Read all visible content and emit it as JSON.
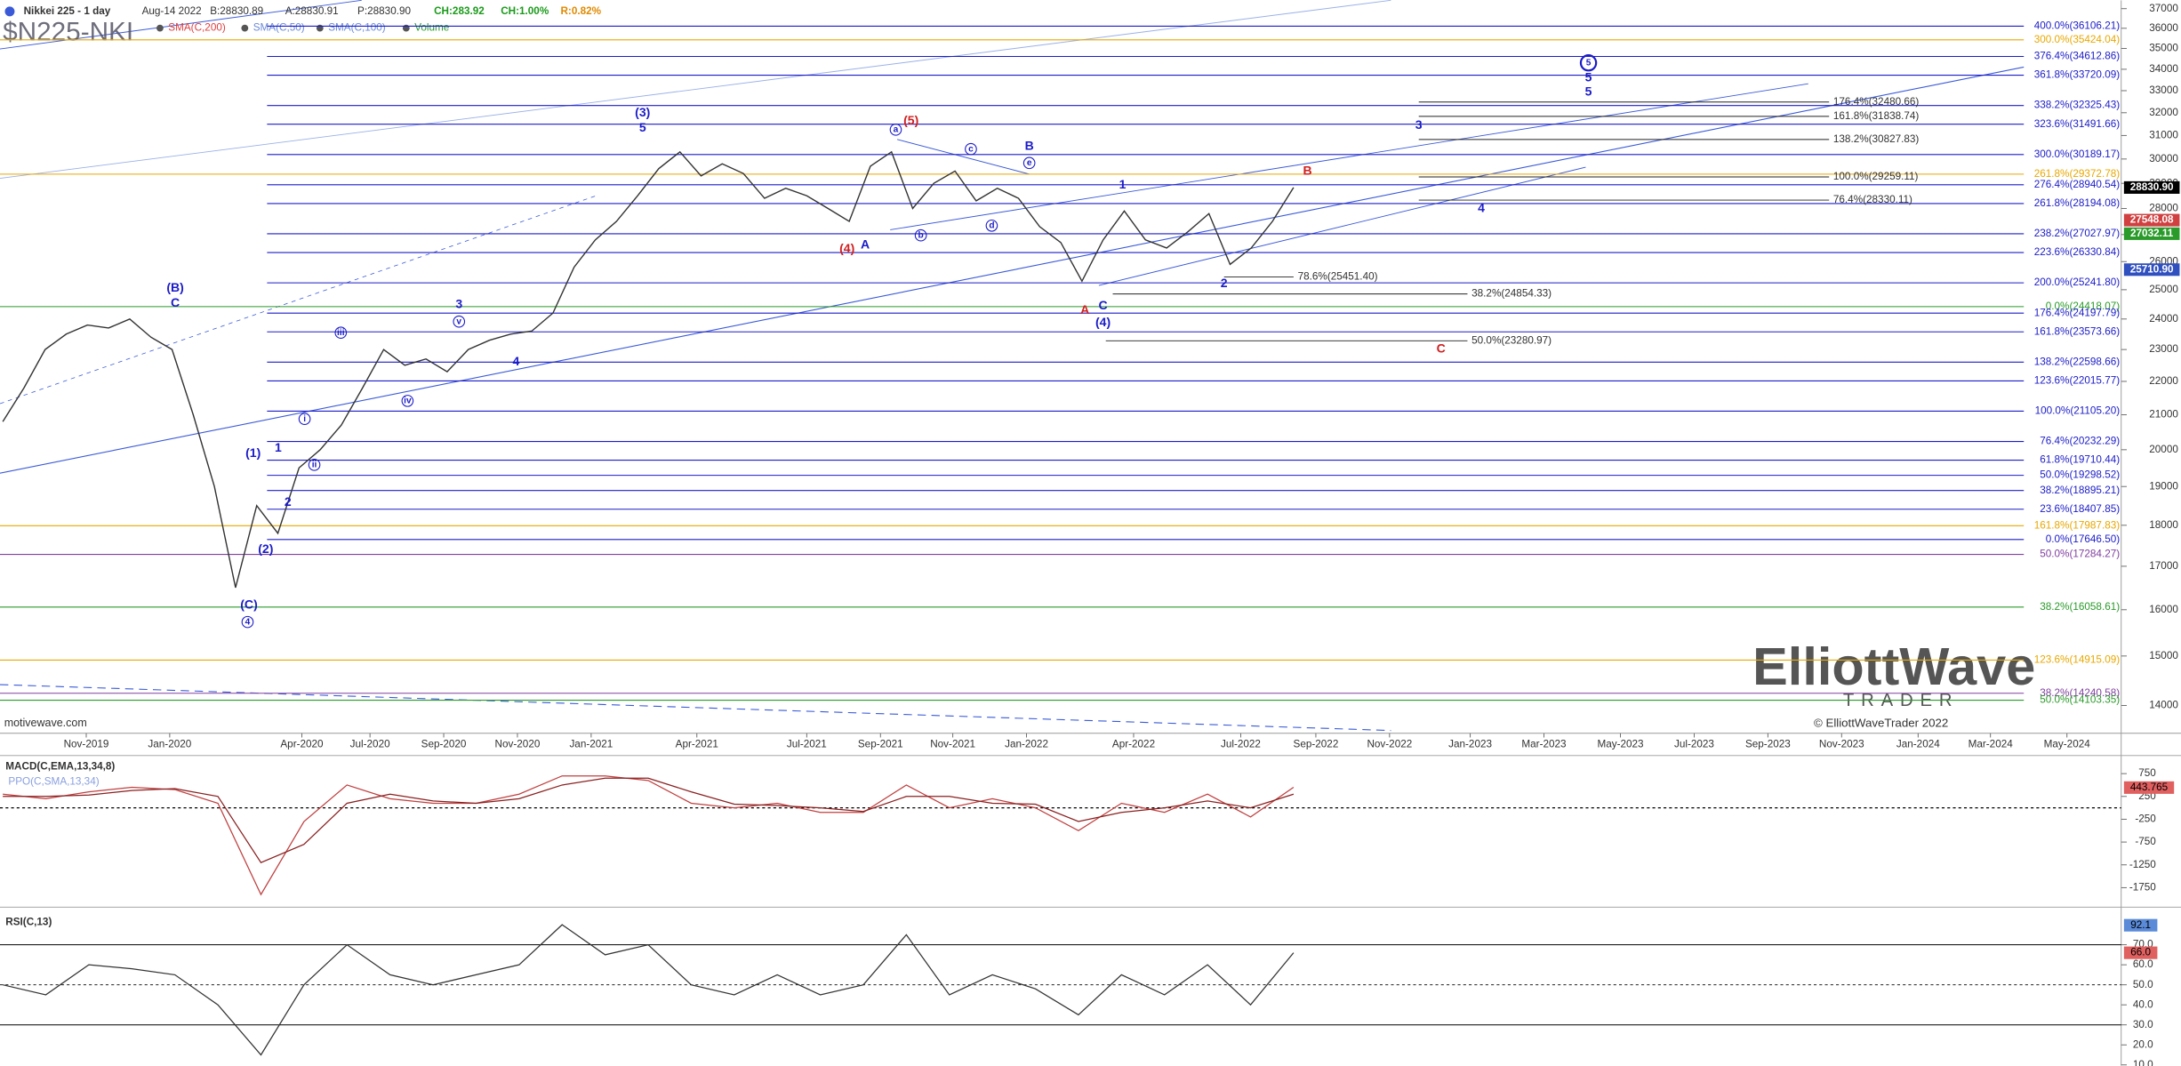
{
  "header": {
    "symbol_title": "Nikkei 225 - 1 day",
    "date": "Aug-14 2022",
    "bid": "B:28830.89",
    "ask": "A:28830.91",
    "price": "P:28830.90",
    "change": "CH:283.92",
    "change_pct": "CH:1.00%",
    "range": "R:0.82%",
    "ticker": "$N225-NKI",
    "studies": [
      {
        "label": "SMA(C,200)",
        "color": "#e04040"
      },
      {
        "label": "SMA(C,50)",
        "color": "#6a8ad8"
      },
      {
        "label": "SMA(C,100)",
        "color": "#6a8ad8"
      },
      {
        "label": "Volume",
        "color": "#2a9a2a"
      }
    ],
    "source": "motivewave.com"
  },
  "watermark": {
    "logo": "ElliottWave",
    "sub": "TRADER",
    "copyright": "© ElliottWaveTrader 2022"
  },
  "chart_data": [
    {
      "type": "line",
      "title": "Nikkei 225 - 1 day",
      "log_scale": true,
      "ylim": [
        14000,
        37000
      ],
      "yticks": [
        14000,
        15000,
        16000,
        17000,
        18000,
        19000,
        20000,
        21000,
        22000,
        23000,
        24000,
        25000,
        26000,
        27000,
        28000,
        29000,
        30000,
        31000,
        32000,
        33000,
        34000,
        35000,
        36000,
        37000
      ],
      "xtick_labels": [
        "Nov-2019",
        "Jan-2020",
        "Apr-2020",
        "Jul-2020",
        "Sep-2020",
        "Nov-2020",
        "Jan-2021",
        "Apr-2021",
        "Jul-2021",
        "Sep-2021",
        "Nov-2021",
        "Jan-2022",
        "Apr-2022",
        "Jul-2022",
        "Sep-2022",
        "Nov-2022",
        "Jan-2023",
        "Mar-2023",
        "May-2023",
        "Jul-2023",
        "Sep-2023",
        "Nov-2023",
        "Jan-2024",
        "Mar-2024",
        "May-2024"
      ],
      "series": [
        {
          "name": "Nikkei 225",
          "color": "#333333",
          "values": [
            20800,
            21800,
            23000,
            23500,
            23800,
            23700,
            24000,
            23400,
            23000,
            21000,
            19000,
            16500,
            18500,
            17800,
            19500,
            20000,
            20700,
            21800,
            23000,
            22500,
            22700,
            22300,
            23000,
            23300,
            23500,
            23600,
            24200,
            25800,
            26800,
            27500,
            28500,
            29600,
            30300,
            29300,
            29800,
            29400,
            28400,
            28800,
            28500,
            28000,
            27500,
            29700,
            30300,
            28000,
            29000,
            29500,
            28300,
            28800,
            28400,
            27300,
            26700,
            25300,
            26800,
            27900,
            26800,
            26500,
            27100,
            27800,
            25900,
            26500,
            27500,
            28830.9
          ]
        }
      ],
      "levels": [
        {
          "label": "400.0%(36106.21)",
          "value": 36106.21,
          "color": "#1c1cc8"
        },
        {
          "label": "300.0%(35424.04)",
          "value": 35424.04,
          "color": "#e8a800"
        },
        {
          "label": "376.4%(34612.86)",
          "value": 34612.86,
          "color": "#1c1cc8"
        },
        {
          "label": "361.8%(33720.09)",
          "value": 33720.09,
          "color": "#1c1cc8"
        },
        {
          "label": "338.2%(32325.43)",
          "value": 32325.43,
          "color": "#1c1cc8"
        },
        {
          "label": "323.6%(31491.66)",
          "value": 31491.66,
          "color": "#1c1cc8"
        },
        {
          "label": "300.0%(30189.17)",
          "value": 30189.17,
          "color": "#1c1cc8"
        },
        {
          "label": "261.8%(29372.78)",
          "value": 29372.78,
          "color": "#e8a800"
        },
        {
          "label": "276.4%(28940.54)",
          "value": 28940.54,
          "color": "#1c1cc8"
        },
        {
          "label": "261.8%(28194.08)",
          "value": 28194.08,
          "color": "#1c1cc8"
        },
        {
          "label": "238.2%(27027.97)",
          "value": 27027.97,
          "color": "#1c1cc8"
        },
        {
          "label": "223.6%(26330.84)",
          "value": 26330.84,
          "color": "#1c1cc8"
        },
        {
          "label": "200.0%(25241.80)",
          "value": 25241.8,
          "color": "#1c1cc8"
        },
        {
          "label": "0.0%(24418.07)",
          "value": 24418.07,
          "color": "#2a9a2a"
        },
        {
          "label": "176.4%(24197.79)",
          "value": 24197.79,
          "color": "#1c1cc8"
        },
        {
          "label": "161.8%(23573.66)",
          "value": 23573.66,
          "color": "#1c1cc8"
        },
        {
          "label": "138.2%(22598.66)",
          "value": 22598.66,
          "color": "#1c1cc8"
        },
        {
          "label": "123.6%(22015.77)",
          "value": 22015.77,
          "color": "#1c1cc8"
        },
        {
          "label": "100.0%(21105.20)",
          "value": 21105.2,
          "color": "#1c1cc8"
        },
        {
          "label": "76.4%(20232.29)",
          "value": 20232.29,
          "color": "#1c1cc8"
        },
        {
          "label": "61.8%(19710.44)",
          "value": 19710.44,
          "color": "#1c1cc8"
        },
        {
          "label": "50.0%(19298.52)",
          "value": 19298.52,
          "color": "#1c1cc8"
        },
        {
          "label": "38.2%(18895.21)",
          "value": 18895.21,
          "color": "#1c1cc8"
        },
        {
          "label": "23.6%(18407.85)",
          "value": 18407.85,
          "color": "#1c1cc8"
        },
        {
          "label": "161.8%(17987.83)",
          "value": 17987.83,
          "color": "#e8a800"
        },
        {
          "label": "0.0%(17646.50)",
          "value": 17646.5,
          "color": "#1c1cc8"
        },
        {
          "label": "50.0%(17284.27)",
          "value": 17284.27,
          "color": "#8040a0"
        },
        {
          "label": "38.2%(16058.61)",
          "value": 16058.61,
          "color": "#2a9a2a"
        },
        {
          "label": "123.6%(14915.09)",
          "value": 14915.09,
          "color": "#e8a800"
        },
        {
          "label": "38.2%(14240.58)",
          "value": 14240.58,
          "color": "#8040a0"
        },
        {
          "label": "50.0%(14103.35)",
          "value": 14103.35,
          "color": "#2a9a2a"
        }
      ],
      "projections_upper": [
        {
          "label": "176.4%(32480.66)",
          "value": 32480.66
        },
        {
          "label": "161.8%(31838.74)",
          "value": 31838.74
        },
        {
          "label": "138.2%(30827.83)",
          "value": 30827.83
        },
        {
          "label": "100.0%(29259.11)",
          "value": 29259.11
        },
        {
          "label": "76.4%(28330.11)",
          "value": 28330.11
        }
      ],
      "projections_lower": [
        {
          "label": "78.6%(25451.40)",
          "value": 25451.4
        },
        {
          "label": "38.2%(24854.33)",
          "value": 24854.33
        },
        {
          "label": "50.0%(23280.97)",
          "value": 23280.97
        }
      ],
      "current_labels": [
        {
          "value": 28830.9,
          "label": "28830.90",
          "color": "#000000"
        },
        {
          "value": 27548.08,
          "label": "27548.08",
          "color": "#d04040"
        },
        {
          "value": 27032.11,
          "label": "27032.11",
          "color": "#2a9a2a"
        },
        {
          "value": 25710.9,
          "label": "25710.90",
          "color": "#3050c0"
        }
      ],
      "wave_labels": [
        {
          "text": "(B)",
          "color": "#1c1cc8"
        },
        {
          "text": "C",
          "color": "#1c1cc8"
        },
        {
          "text": "(1)",
          "color": "#1c1cc8"
        },
        {
          "text": "1",
          "color": "#1c1cc8"
        },
        {
          "text": "2",
          "color": "#1c1cc8"
        },
        {
          "text": "(2)",
          "color": "#1c1cc8"
        },
        {
          "text": "(C)",
          "color": "#1c1cc8"
        },
        {
          "text": "4",
          "color": "#1c1cc8",
          "circled": true
        },
        {
          "text": "i",
          "color": "#1c1cc8",
          "circled": true
        },
        {
          "text": "ii",
          "color": "#1c1cc8",
          "circled": true
        },
        {
          "text": "iii",
          "color": "#1c1cc8",
          "circled": true
        },
        {
          "text": "iv",
          "color": "#1c1cc8",
          "circled": true
        },
        {
          "text": "v",
          "color": "#1c1cc8",
          "circled": true
        },
        {
          "text": "3",
          "color": "#1c1cc8"
        },
        {
          "text": "4",
          "color": "#1c1cc8"
        },
        {
          "text": "(3)",
          "color": "#1c1cc8"
        },
        {
          "text": "5",
          "color": "#1c1cc8"
        },
        {
          "text": "(5)",
          "color": "#d02020"
        },
        {
          "text": "a",
          "color": "#1c1cc8",
          "circled": true
        },
        {
          "text": "(4)",
          "color": "#d02020"
        },
        {
          "text": "A",
          "color": "#1c1cc8"
        },
        {
          "text": "b",
          "color": "#1c1cc8",
          "circled": true
        },
        {
          "text": "c",
          "color": "#1c1cc8",
          "circled": true
        },
        {
          "text": "d",
          "color": "#1c1cc8",
          "circled": true
        },
        {
          "text": "B",
          "color": "#1c1cc8"
        },
        {
          "text": "e",
          "color": "#1c1cc8",
          "circled": true
        },
        {
          "text": "A",
          "color": "#d02020"
        },
        {
          "text": "C",
          "color": "#1c1cc8"
        },
        {
          "text": "(4)",
          "color": "#1c1cc8"
        },
        {
          "text": "1",
          "color": "#1c1cc8"
        },
        {
          "text": "2",
          "color": "#1c1cc8"
        },
        {
          "text": "B",
          "color": "#d02020"
        },
        {
          "text": "C",
          "color": "#d02020"
        },
        {
          "text": "3",
          "color": "#1c1cc8"
        },
        {
          "text": "4",
          "color": "#1c1cc8"
        },
        {
          "text": "5",
          "color": "#1c1cc8",
          "circled": true
        },
        {
          "text": "5",
          "color": "#1c1cc8"
        },
        {
          "text": "5",
          "color": "#1c1cc8"
        }
      ]
    },
    {
      "type": "line",
      "title": "MACD(C,EMA,13,34,8)",
      "subtitle": "PPO(C,SMA,13,34)",
      "ylim": [
        -2116,
        1146
      ],
      "yticks": [
        750,
        250,
        -250,
        -750,
        -1250,
        -1750
      ],
      "current_value": 443.765,
      "series": [
        {
          "name": "MACD",
          "color": "#c04040",
          "values": [
            300,
            200,
            350,
            450,
            400,
            100,
            -1900,
            -300,
            500,
            200,
            100,
            100,
            300,
            700,
            700,
            600,
            100,
            0,
            100,
            -100,
            -100,
            500,
            0,
            200,
            0,
            -500,
            100,
            -100,
            300,
            -200,
            450
          ]
        },
        {
          "name": "Signal",
          "color": "#8a2020",
          "values": [
            250,
            250,
            280,
            380,
            420,
            250,
            -1200,
            -800,
            100,
            300,
            150,
            100,
            200,
            500,
            650,
            650,
            350,
            80,
            50,
            0,
            -80,
            250,
            250,
            100,
            80,
            -300,
            -100,
            0,
            150,
            0,
            300
          ]
        }
      ]
    },
    {
      "type": "line",
      "title": "RSI(C,13)",
      "ylim": [
        9.6,
        86.7
      ],
      "yticks": [
        {
          "value": 70,
          "label": "70.0"
        },
        {
          "value": 60,
          "label": "60.0"
        },
        {
          "value": 50,
          "label": "50.0"
        },
        {
          "value": 40,
          "label": "40.0"
        },
        {
          "value": 30,
          "label": "30.0"
        },
        {
          "value": 20,
          "label": "20.0"
        },
        {
          "value": 10,
          "label": "10.0"
        }
      ],
      "guide_lines": [
        70,
        50,
        30
      ],
      "current_values": [
        {
          "value": 92.1,
          "color": "#5a8ad8"
        },
        {
          "value": 66,
          "label": "66.0",
          "color": "#e06060"
        }
      ],
      "series": [
        {
          "name": "RSI",
          "color": "#333333",
          "values": [
            50,
            45,
            60,
            58,
            55,
            40,
            15,
            50,
            70,
            55,
            50,
            55,
            60,
            80,
            65,
            70,
            50,
            45,
            55,
            45,
            50,
            75,
            45,
            55,
            48,
            35,
            55,
            45,
            60,
            40,
            66
          ]
        }
      ]
    }
  ]
}
